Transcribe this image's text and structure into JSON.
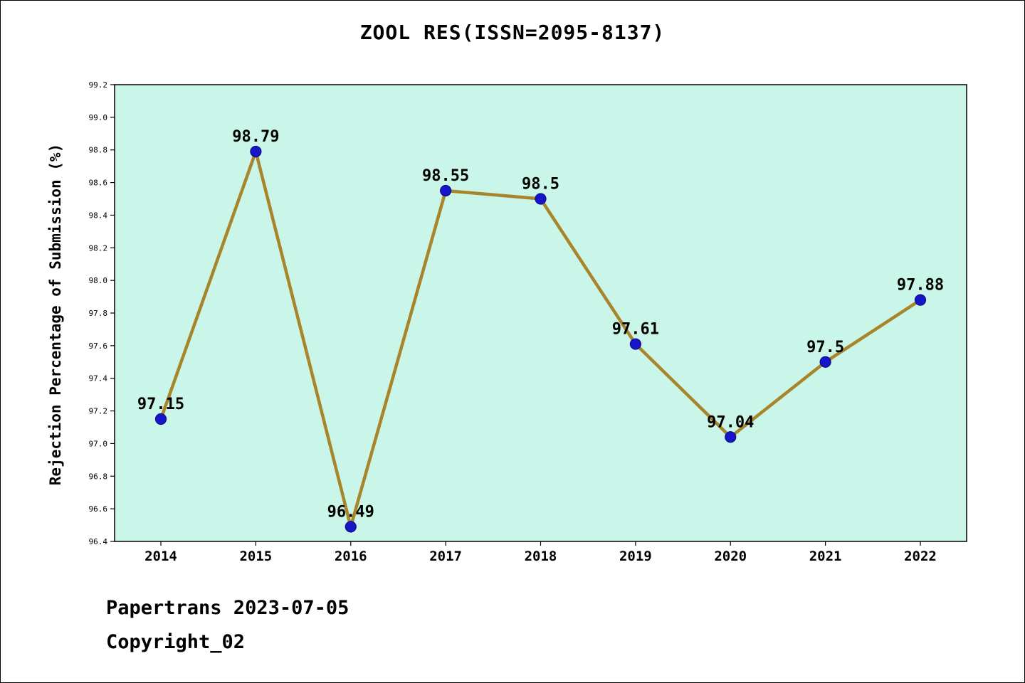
{
  "page": {
    "title": "ZOOL RES(ISSN=2095-8137)",
    "footer_line1": "Papertrans 2023-07-05",
    "footer_line2": "Copyright_02"
  },
  "chart_data": {
    "type": "line",
    "title": "ZOOL RES(ISSN=2095-8137)",
    "categories": [
      "2014",
      "2015",
      "2016",
      "2017",
      "2018",
      "2019",
      "2020",
      "2021",
      "2022"
    ],
    "values": [
      97.15,
      98.79,
      96.49,
      98.55,
      98.5,
      97.61,
      97.04,
      97.5,
      97.88
    ],
    "point_labels": [
      "97.15",
      "98.79",
      "96.49",
      "98.55",
      "98.5",
      "97.61",
      "97.04",
      "97.5",
      "97.88"
    ],
    "xlabel": "",
    "ylabel": "Rejection Percentage of Submission (%)",
    "ylim": [
      96.4,
      99.2
    ],
    "ytick_step": 0.2,
    "grid": false,
    "legend": "none",
    "colors": {
      "line": "#a8852b",
      "marker_fill": "#1616c8",
      "marker_edge": "#0d0d8f",
      "plot_background": "#c9f6e9",
      "axis": "#000000"
    }
  }
}
